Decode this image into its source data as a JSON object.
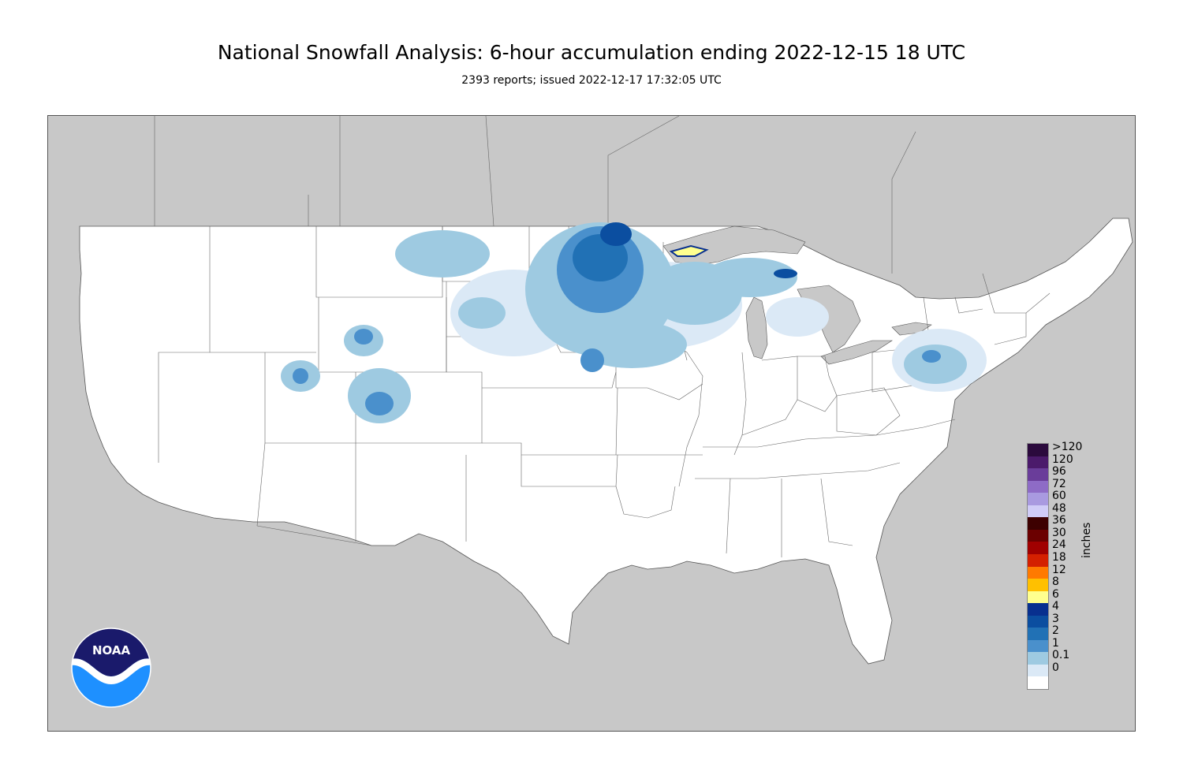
{
  "header": {
    "title": "National Snowfall Analysis: 6-hour accumulation ending 2022-12-15 18 UTC",
    "subtitle": "2393 reports; issued 2022-12-17 17:32:05 UTC"
  },
  "map": {
    "background_color": "#c8c8c8",
    "land_color": "#ffffff",
    "boundary_color": "#555555"
  },
  "legend": {
    "unit": "inches",
    "labels": [
      ">120",
      "120",
      "96",
      "72",
      "60",
      "48",
      "36",
      "30",
      "24",
      "18",
      "12",
      "8",
      "6",
      "4",
      "3",
      "2",
      "1",
      "0.1",
      "0"
    ],
    "colors": [
      "#2b0a3d",
      "#4b1a6b",
      "#6a3d9a",
      "#8e6bc6",
      "#a99ae0",
      "#d0ccf7",
      "#3d0000",
      "#6b0000",
      "#a00000",
      "#d42000",
      "#ff7a00",
      "#ffc000",
      "#ffff8f",
      "#08308f",
      "#0b4ea0",
      "#2171b5",
      "#4a90cc",
      "#9ecae1",
      "#dbe9f6",
      "#ffffff"
    ]
  },
  "logo": {
    "text": "NOAA",
    "top_color": "#1a1a6b",
    "bottom_color": "#1e90ff"
  }
}
